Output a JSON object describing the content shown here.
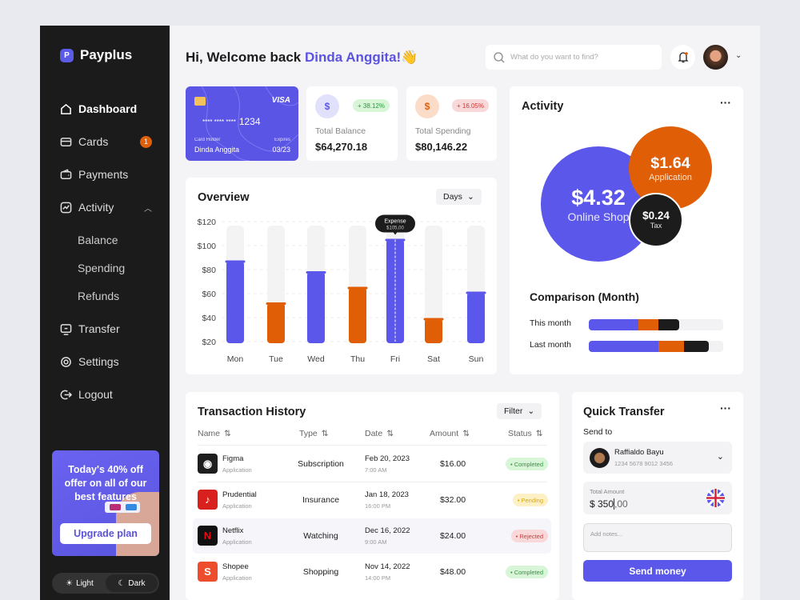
{
  "app": {
    "name": "Payplus",
    "logo_letter": "P"
  },
  "sidebar": {
    "items": [
      {
        "label": "Dashboard",
        "icon": "home-icon",
        "active": true
      },
      {
        "label": "Cards",
        "icon": "card-icon",
        "badge": "1"
      },
      {
        "label": "Payments",
        "icon": "wallet-icon"
      },
      {
        "label": "Activity",
        "icon": "activity-icon",
        "expanded": true
      },
      {
        "label": "Balance",
        "sub": true
      },
      {
        "label": "Spending",
        "sub": true
      },
      {
        "label": "Refunds",
        "sub": true
      },
      {
        "label": "Transfer",
        "icon": "transfer-icon"
      },
      {
        "label": "Settings",
        "icon": "gear-icon"
      },
      {
        "label": "Logout",
        "icon": "logout-icon"
      }
    ],
    "promo": {
      "text": "Today's 40% off offer on all of our best features",
      "button": "Upgrade plan"
    },
    "theme": {
      "light": "Light",
      "dark": "Dark",
      "selected": "Dark"
    }
  },
  "header": {
    "greeting": "Hi, Welcome back ",
    "name": "Dinda Anggita!",
    "emoji": "👋",
    "search_placeholder": "What do you want to find?"
  },
  "card": {
    "brand": "VISA",
    "number_mask": "**** **** ****",
    "last4": "1234",
    "holder_label": "Card Holder",
    "holder": "Dinda Anggita",
    "expires_label": "Expires",
    "expires": "03/23"
  },
  "stats": [
    {
      "label": "Total Balance",
      "value": "$64,270.18",
      "change": "+ 38.12%"
    },
    {
      "label": "Total Spending",
      "value": "$80,146.22",
      "change": "+ 16.05%"
    }
  ],
  "overview": {
    "title": "Overview",
    "period": "Days",
    "tooltip_label": "Expense",
    "tooltip_value": "$105,00"
  },
  "chart_data": {
    "type": "bar",
    "categories": [
      "Mon",
      "Tue",
      "Wed",
      "Thu",
      "Fri",
      "Sat",
      "Sun"
    ],
    "values": [
      87,
      52,
      78,
      65,
      105,
      39,
      61
    ],
    "colors": [
      "#5b57ea",
      "#e05e06",
      "#5b57ea",
      "#e05e06",
      "#5b57ea",
      "#e05e06",
      "#5b57ea"
    ],
    "ylim": [
      20,
      120
    ],
    "yticks": [
      "$120",
      "$100",
      "$80",
      "$60",
      "$40",
      "$20"
    ],
    "grid": true,
    "highlight": "Fri"
  },
  "activity": {
    "title": "Activity",
    "bubbles": [
      {
        "value": "$4.32",
        "label": "Online Shop",
        "color": "#5b57ea"
      },
      {
        "value": "$1.64",
        "label": "Application",
        "color": "#e05e06"
      },
      {
        "value": "$0.24",
        "label": "Tax",
        "color": "#1c1c1c"
      }
    ],
    "comparison_title": "Comparison (Month)",
    "comparison": [
      {
        "label": "This month",
        "segments": [
          37,
          15,
          15
        ]
      },
      {
        "label": "Last month",
        "segments": [
          52,
          19,
          18
        ]
      }
    ]
  },
  "transactions": {
    "title": "Transaction History",
    "filter": "Filter",
    "columns": [
      "Name",
      "Type",
      "Date",
      "Amount",
      "Status"
    ],
    "rows": [
      {
        "name": "Figma",
        "sub": "Application",
        "type": "Subscription",
        "date": "Feb 20, 2023",
        "time": "7:00 AM",
        "amount": "$16.00",
        "status": "Completed"
      },
      {
        "name": "Prudential",
        "sub": "Application",
        "type": "Insurance",
        "date": "Jan 18, 2023",
        "time": "16:00 PM",
        "amount": "$32.00",
        "status": "Pending"
      },
      {
        "name": "Netflix",
        "sub": "Application",
        "type": "Watching",
        "date": "Dec 16, 2022",
        "time": "9:00 AM",
        "amount": "$24.00",
        "status": "Rejected"
      },
      {
        "name": "Shopee",
        "sub": "Application",
        "type": "Shopping",
        "date": "Nov 14, 2022",
        "time": "14:00 PM",
        "amount": "$48.00",
        "status": "Completed"
      }
    ]
  },
  "transfer": {
    "title": "Quick Transfer",
    "send_to": "Send to",
    "recipient": "Raffialdo Bayu",
    "account": "1234 5678 9012 3456",
    "amount_label": "Total Amount",
    "amount": "$ 350",
    "amount_cents": ",00",
    "notes_placeholder": "Add notes...",
    "button": "Send money"
  }
}
